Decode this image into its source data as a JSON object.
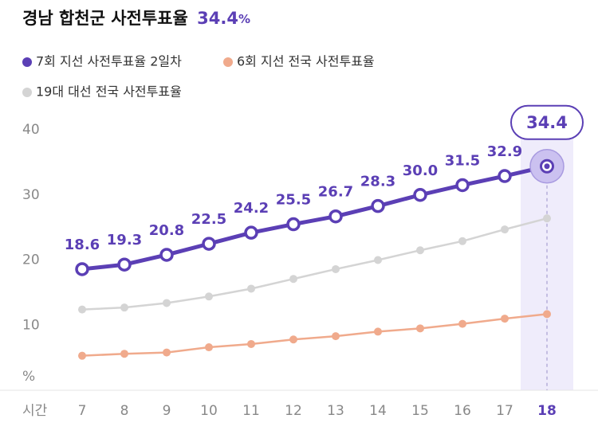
{
  "chart_data": {
    "type": "line",
    "title": "경남 합천군 사전투표율",
    "title_highlight": "34.4",
    "title_unit": "%",
    "x_label": "시간",
    "y_unit": "%",
    "categories": [
      "7",
      "8",
      "9",
      "10",
      "11",
      "12",
      "13",
      "14",
      "15",
      "16",
      "17",
      "18"
    ],
    "ylim": [
      0,
      40
    ],
    "yticks": [
      10,
      20,
      30,
      40
    ],
    "grid": false,
    "series": [
      {
        "name": "7회 지선 사전투표율 2일차",
        "color": "#5b3fb5",
        "values": [
          18.6,
          19.3,
          20.8,
          22.5,
          24.2,
          25.5,
          26.7,
          28.3,
          30.0,
          31.5,
          32.9,
          34.4
        ],
        "value_labels": [
          "18.6",
          "19.3",
          "20.8",
          "22.5",
          "24.2",
          "25.5",
          "26.7",
          "28.3",
          "30.0",
          "31.5",
          "32.9",
          "34.4"
        ]
      },
      {
        "name": "6회 지선 전국 사전투표율",
        "color": "#f0aa8c",
        "values": [
          5.3,
          5.6,
          5.8,
          6.6,
          7.1,
          7.8,
          8.3,
          9.0,
          9.5,
          10.2,
          11.0,
          11.7
        ]
      },
      {
        "name": "19대 대선 전국 사전투표율",
        "color": "#d4d4d4",
        "values": [
          12.4,
          12.7,
          13.4,
          14.4,
          15.6,
          17.1,
          18.6,
          20.0,
          21.5,
          22.9,
          24.7,
          26.4
        ]
      }
    ]
  }
}
